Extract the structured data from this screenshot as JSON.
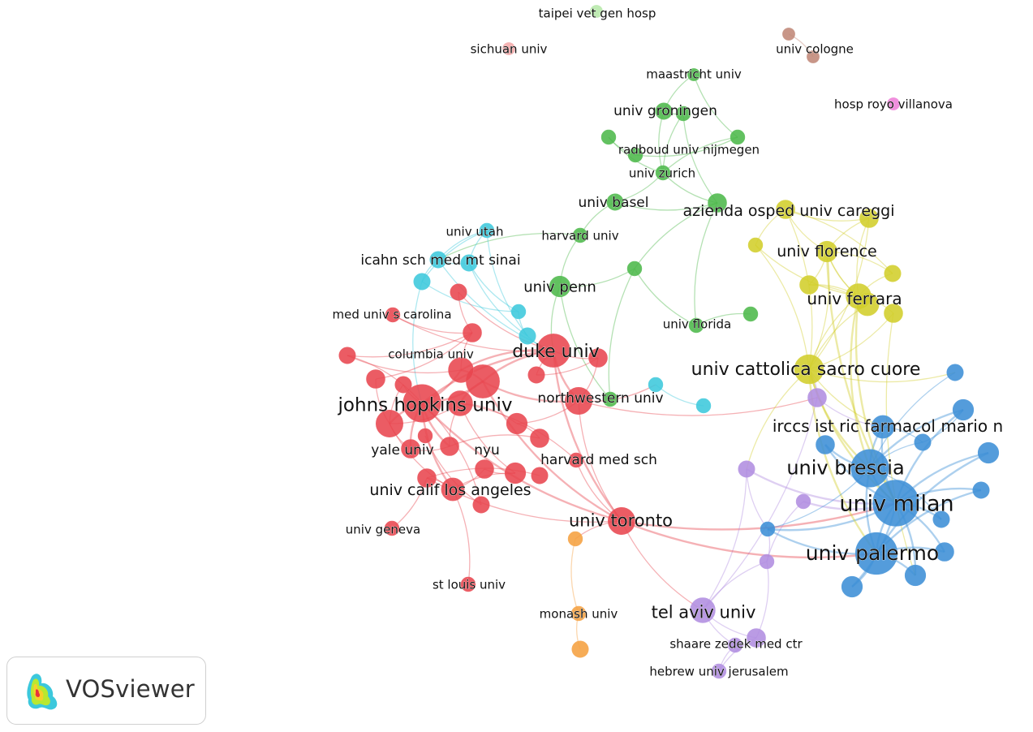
{
  "brand": {
    "name": "VOSviewer",
    "logo_icon": "vosviewer-density-logo-icon"
  },
  "clusters": {
    "red": "#e8454f",
    "green": "#4cb84a",
    "cyan": "#3cc8dc",
    "yellow": "#d2ce2a",
    "blue": "#3c8ed6",
    "purple": "#b08de0",
    "orange": "#f5a040",
    "brown": "#c08878",
    "pink": "#ee7fd8",
    "lightred": "#f4a8a8",
    "lightgreen": "#b6e8a8"
  },
  "nodes": [
    {
      "id": "taipei",
      "label": "taipei vet gen hosp",
      "cluster": "lightgreen",
      "size": 1,
      "fs": 15
    },
    {
      "id": "sichuan",
      "label": "sichuan univ",
      "cluster": "lightred",
      "size": 1,
      "fs": 15
    },
    {
      "id": "cologne",
      "label": "univ cologne",
      "cluster": "brown",
      "size": 1,
      "fs": 15
    },
    {
      "id": "cologne2",
      "label": "",
      "cluster": "brown",
      "size": 1
    },
    {
      "id": "royo",
      "label": "hosp royo villanova",
      "cluster": "pink",
      "size": 1,
      "fs": 15
    },
    {
      "id": "maastricht",
      "label": "maastricht univ",
      "cluster": "green",
      "size": 1,
      "fs": 15
    },
    {
      "id": "groningen",
      "label": "univ groningen",
      "cluster": "green",
      "size": 2,
      "fs": 17
    },
    {
      "id": "g_b",
      "label": "",
      "cluster": "green",
      "size": 1.5
    },
    {
      "id": "g_c",
      "label": "",
      "cluster": "green",
      "size": 1.5
    },
    {
      "id": "g_d",
      "label": "",
      "cluster": "green",
      "size": 1.5
    },
    {
      "id": "radboud",
      "label": "radboud univ nijmegen",
      "cluster": "green",
      "size": 1.5,
      "fs": 15
    },
    {
      "id": "zurich",
      "label": "univ zurich",
      "cluster": "green",
      "size": 1.5,
      "fs": 15
    },
    {
      "id": "basel",
      "label": "univ basel",
      "cluster": "green",
      "size": 2,
      "fs": 17
    },
    {
      "id": "careggi_g",
      "label": "",
      "cluster": "green",
      "size": 2.5
    },
    {
      "id": "harvard",
      "label": "harvard univ",
      "cluster": "green",
      "size": 1.5,
      "fs": 15
    },
    {
      "id": "penn",
      "label": "univ penn",
      "cluster": "green",
      "size": 3,
      "fs": 18
    },
    {
      "id": "g_mid",
      "label": "",
      "cluster": "green",
      "size": 1.5
    },
    {
      "id": "florida",
      "label": "univ florida",
      "cluster": "green",
      "size": 1.5,
      "fs": 15
    },
    {
      "id": "g_fl2",
      "label": "",
      "cluster": "green",
      "size": 1.5
    },
    {
      "id": "northwestern_g",
      "label": "",
      "cluster": "green",
      "size": 1.5
    },
    {
      "id": "careggi",
      "label": "azienda osped univ careggi",
      "cluster": "yellow",
      "size": 2.5,
      "fs": 19
    },
    {
      "id": "y_a",
      "label": "",
      "cluster": "yellow",
      "size": 2.5
    },
    {
      "id": "y_b",
      "label": "",
      "cluster": "yellow",
      "size": 1.5
    },
    {
      "id": "florence",
      "label": "univ florence",
      "cluster": "yellow",
      "size": 3,
      "fs": 19
    },
    {
      "id": "y_c",
      "label": "",
      "cluster": "yellow",
      "size": 3.5
    },
    {
      "id": "y_d",
      "label": "",
      "cluster": "yellow",
      "size": 2
    },
    {
      "id": "y_e",
      "label": "",
      "cluster": "yellow",
      "size": 2.5
    },
    {
      "id": "ferrara",
      "label": "univ ferrara",
      "cluster": "yellow",
      "size": 4,
      "fs": 20
    },
    {
      "id": "y_f",
      "label": "",
      "cluster": "yellow",
      "size": 2.5
    },
    {
      "id": "cattolica",
      "label": "univ cattolica sacro cuore",
      "cluster": "yellow",
      "size": 5,
      "fs": 22
    },
    {
      "id": "utah",
      "label": "univ utah",
      "cluster": "cyan",
      "size": 1.5,
      "fs": 15
    },
    {
      "id": "sinai",
      "label": "icahn sch med mt sinai",
      "cluster": "cyan",
      "size": 2,
      "fs": 17
    },
    {
      "id": "c_a",
      "label": "",
      "cluster": "cyan",
      "size": 2
    },
    {
      "id": "c_b",
      "label": "",
      "cluster": "cyan",
      "size": 2
    },
    {
      "id": "c_c",
      "label": "",
      "cluster": "cyan",
      "size": 1.5
    },
    {
      "id": "c_d",
      "label": "",
      "cluster": "cyan",
      "size": 2
    },
    {
      "id": "c_e",
      "label": "",
      "cluster": "cyan",
      "size": 1.5
    },
    {
      "id": "c_f",
      "label": "",
      "cluster": "cyan",
      "size": 1.5
    },
    {
      "id": "scarolina",
      "label": "med univ s carolina",
      "cluster": "red",
      "size": 1.5,
      "fs": 15
    },
    {
      "id": "r_a",
      "label": "",
      "cluster": "red",
      "size": 2
    },
    {
      "id": "r_b",
      "label": "",
      "cluster": "red",
      "size": 2.5
    },
    {
      "id": "columbia",
      "label": "columbia univ",
      "cluster": "red",
      "size": 2,
      "fs": 15
    },
    {
      "id": "duke",
      "label": "duke univ",
      "cluster": "red",
      "size": 6,
      "fs": 22
    },
    {
      "id": "r_c",
      "label": "",
      "cluster": "red",
      "size": 2.5
    },
    {
      "id": "r_d",
      "label": "",
      "cluster": "red",
      "size": 4
    },
    {
      "id": "r_e",
      "label": "",
      "cluster": "red",
      "size": 6
    },
    {
      "id": "r_f",
      "label": "",
      "cluster": "red",
      "size": 2.5
    },
    {
      "id": "r_g",
      "label": "",
      "cluster": "red",
      "size": 2
    },
    {
      "id": "jhu",
      "label": "johns hopkins univ",
      "cluster": "red",
      "size": 7,
      "fs": 23
    },
    {
      "id": "r_h",
      "label": "",
      "cluster": "red",
      "size": 4.5
    },
    {
      "id": "r_i",
      "label": "",
      "cluster": "red",
      "size": 4
    },
    {
      "id": "northwestern",
      "label": "northwestern univ",
      "cluster": "red",
      "size": 4.5,
      "fs": 17
    },
    {
      "id": "r_j",
      "label": "",
      "cluster": "red",
      "size": 3
    },
    {
      "id": "r_k",
      "label": "",
      "cluster": "red",
      "size": 2.5
    },
    {
      "id": "yale",
      "label": "yale univ",
      "cluster": "red",
      "size": 2.5,
      "fs": 17
    },
    {
      "id": "nyu",
      "label": "nyu",
      "cluster": "red",
      "size": 2.5,
      "fs": 17
    },
    {
      "id": "hms",
      "label": "harvard med sch",
      "cluster": "red",
      "size": 1.5,
      "fs": 17
    },
    {
      "id": "r_l",
      "label": "",
      "cluster": "red",
      "size": 2.5
    },
    {
      "id": "r_m",
      "label": "",
      "cluster": "red",
      "size": 3
    },
    {
      "id": "r_n",
      "label": "",
      "cluster": "red",
      "size": 2
    },
    {
      "id": "ucla",
      "label": "univ calif los angeles",
      "cluster": "red",
      "size": 3.5,
      "fs": 19
    },
    {
      "id": "r_o",
      "label": "",
      "cluster": "red",
      "size": 2.5
    },
    {
      "id": "r_p",
      "label": "",
      "cluster": "red",
      "size": 2
    },
    {
      "id": "toronto",
      "label": "univ toronto",
      "cluster": "red",
      "size": 4.5,
      "fs": 21
    },
    {
      "id": "geneva",
      "label": "univ geneva",
      "cluster": "red",
      "size": 1.5,
      "fs": 15
    },
    {
      "id": "stlouis",
      "label": "st louis univ",
      "cluster": "red",
      "size": 1.5,
      "fs": 15
    },
    {
      "id": "r_q",
      "label": "",
      "cluster": "red",
      "size": 1.5
    },
    {
      "id": "r_r",
      "label": "",
      "cluster": "red",
      "size": 2
    },
    {
      "id": "o_a",
      "label": "",
      "cluster": "orange",
      "size": 1.5
    },
    {
      "id": "monash",
      "label": "monash univ",
      "cluster": "orange",
      "size": 1.5,
      "fs": 15
    },
    {
      "id": "o_b",
      "label": "",
      "cluster": "orange",
      "size": 2
    },
    {
      "id": "telaviv",
      "label": "tel aviv univ",
      "cluster": "purple",
      "size": 4,
      "fs": 21
    },
    {
      "id": "shaare",
      "label": "shaare zedek med ctr",
      "cluster": "purple",
      "size": 2.5,
      "fs": 15
    },
    {
      "id": "p_a",
      "label": "",
      "cluster": "purple",
      "size": 1.5
    },
    {
      "id": "hebrew",
      "label": "hebrew univ jerusalem",
      "cluster": "purple",
      "size": 1.5,
      "fs": 15
    },
    {
      "id": "p_b",
      "label": "",
      "cluster": "purple",
      "size": 2.5
    },
    {
      "id": "p_c",
      "label": "",
      "cluster": "purple",
      "size": 2
    },
    {
      "id": "p_d",
      "label": "",
      "cluster": "purple",
      "size": 1.5
    },
    {
      "id": "p_e",
      "label": "",
      "cluster": "purple",
      "size": 1.5
    },
    {
      "id": "irccs",
      "label": "irccs ist ric farmacol mario n",
      "cluster": "blue",
      "size": 3.5,
      "fs": 20
    },
    {
      "id": "brescia",
      "label": "univ brescia",
      "cluster": "blue",
      "size": 7,
      "fs": 24
    },
    {
      "id": "milan",
      "label": "univ milan",
      "cluster": "blue",
      "size": 9,
      "fs": 27
    },
    {
      "id": "palermo",
      "label": "univ palermo",
      "cluster": "blue",
      "size": 8,
      "fs": 25
    },
    {
      "id": "b_a",
      "label": "",
      "cluster": "blue",
      "size": 1.5
    },
    {
      "id": "b_b",
      "label": "",
      "cluster": "blue",
      "size": 2.5
    },
    {
      "id": "b_c",
      "label": "",
      "cluster": "blue",
      "size": 2
    },
    {
      "id": "b_d",
      "label": "",
      "cluster": "blue",
      "size": 3
    },
    {
      "id": "b_e",
      "label": "",
      "cluster": "blue",
      "size": 3
    },
    {
      "id": "b_f",
      "label": "",
      "cluster": "blue",
      "size": 2
    },
    {
      "id": "b_g",
      "label": "",
      "cluster": "blue",
      "size": 2
    },
    {
      "id": "b_h",
      "label": "",
      "cluster": "blue",
      "size": 3
    },
    {
      "id": "b_i",
      "label": "",
      "cluster": "blue",
      "size": 3
    },
    {
      "id": "b_j",
      "label": "",
      "cluster": "blue",
      "size": 2
    },
    {
      "id": "b_k",
      "label": "",
      "cluster": "blue",
      "size": 2.5
    }
  ],
  "links": [
    [
      "cologne",
      "cologne2"
    ],
    [
      "maastricht",
      "groningen"
    ],
    [
      "groningen",
      "radboud"
    ],
    [
      "groningen",
      "zurich"
    ],
    [
      "radboud",
      "zurich"
    ],
    [
      "g_b",
      "g_c"
    ],
    [
      "g_c",
      "g_d"
    ],
    [
      "g_b",
      "zurich"
    ],
    [
      "g_d",
      "zurich"
    ],
    [
      "zurich",
      "careggi_g"
    ],
    [
      "basel",
      "careggi_g"
    ],
    [
      "basel",
      "harvard"
    ],
    [
      "harvard",
      "penn"
    ],
    [
      "penn",
      "g_mid"
    ],
    [
      "g_mid",
      "florida"
    ],
    [
      "g_mid",
      "northwestern_g"
    ],
    [
      "careggi_g",
      "florida"
    ],
    [
      "g_fl2",
      "florida"
    ],
    [
      "penn",
      "northwestern_g"
    ],
    [
      "basel",
      "zurich"
    ],
    [
      "maastricht",
      "g_d"
    ],
    [
      "radboud",
      "careggi_g"
    ],
    [
      "harvard",
      "sinai"
    ],
    [
      "penn",
      "duke"
    ],
    [
      "careggi_g",
      "g_mid"
    ],
    [
      "careggi",
      "y_a"
    ],
    [
      "careggi",
      "florence"
    ],
    [
      "careggi",
      "y_b"
    ],
    [
      "florence",
      "y_c"
    ],
    [
      "florence",
      "ferrara"
    ],
    [
      "ferrara",
      "y_c"
    ],
    [
      "ferrara",
      "y_e"
    ],
    [
      "ferrara",
      "cattolica"
    ],
    [
      "y_c",
      "cattolica"
    ],
    [
      "y_e",
      "florence"
    ],
    [
      "y_a",
      "ferrara"
    ],
    [
      "y_d",
      "ferrara"
    ],
    [
      "y_f",
      "ferrara"
    ],
    [
      "y_b",
      "ferrara"
    ],
    [
      "y_a",
      "florence"
    ],
    [
      "y_c",
      "y_e"
    ],
    [
      "y_d",
      "florence"
    ],
    [
      "y_d",
      "careggi"
    ],
    [
      "cattolica",
      "florence"
    ],
    [
      "cattolica",
      "careggi"
    ],
    [
      "cattolica",
      "y_a"
    ],
    [
      "cattolica",
      "y_f"
    ],
    [
      "cattolica",
      "y_b"
    ],
    [
      "utah",
      "sinai"
    ],
    [
      "utah",
      "c_a"
    ],
    [
      "utah",
      "c_b"
    ],
    [
      "sinai",
      "c_a"
    ],
    [
      "sinai",
      "c_b"
    ],
    [
      "c_a",
      "c_c"
    ],
    [
      "c_b",
      "c_c"
    ],
    [
      "c_b",
      "c_d"
    ],
    [
      "c_c",
      "c_d"
    ],
    [
      "c_d",
      "duke"
    ],
    [
      "c_a",
      "jhu"
    ],
    [
      "c_e",
      "c_f"
    ],
    [
      "northwestern",
      "c_e"
    ],
    [
      "sinai",
      "duke"
    ],
    [
      "utah",
      "c_d"
    ],
    [
      "duke",
      "jhu"
    ],
    [
      "duke",
      "r_e"
    ],
    [
      "duke",
      "northwestern"
    ],
    [
      "duke",
      "r_d"
    ],
    [
      "duke",
      "r_c"
    ],
    [
      "jhu",
      "r_e"
    ],
    [
      "jhu",
      "r_h"
    ],
    [
      "jhu",
      "r_d"
    ],
    [
      "jhu",
      "columbia"
    ],
    [
      "jhu",
      "ucla"
    ],
    [
      "jhu",
      "yale"
    ],
    [
      "jhu",
      "nyu"
    ],
    [
      "r_e",
      "northwestern"
    ],
    [
      "r_e",
      "r_i"
    ],
    [
      "r_e",
      "r_d"
    ],
    [
      "r_h",
      "yale"
    ],
    [
      "r_h",
      "r_i"
    ],
    [
      "r_i",
      "nyu"
    ],
    [
      "r_i",
      "r_m"
    ],
    [
      "r_m",
      "ucla"
    ],
    [
      "ucla",
      "r_l"
    ],
    [
      "ucla",
      "r_o"
    ],
    [
      "r_o",
      "toronto"
    ],
    [
      "northwestern",
      "toronto"
    ],
    [
      "duke",
      "toronto"
    ],
    [
      "jhu",
      "toronto"
    ],
    [
      "r_e",
      "toronto"
    ],
    [
      "columbia",
      "r_d"
    ],
    [
      "columbia",
      "r_b"
    ],
    [
      "r_b",
      "r_d"
    ],
    [
      "r_a",
      "r_b"
    ],
    [
      "scarolina",
      "r_b"
    ],
    [
      "r_g",
      "r_h"
    ],
    [
      "r_f",
      "r_h"
    ],
    [
      "r_j",
      "r_i"
    ],
    [
      "r_j",
      "northwestern"
    ],
    [
      "r_k",
      "r_j"
    ],
    [
      "hms",
      "r_i"
    ],
    [
      "hms",
      "toronto"
    ],
    [
      "r_l",
      "r_m"
    ],
    [
      "r_n",
      "r_o"
    ],
    [
      "geneva",
      "r_o"
    ],
    [
      "stlouis",
      "ucla"
    ],
    [
      "r_p",
      "jhu"
    ],
    [
      "r_q",
      "r_p"
    ],
    [
      "r_r",
      "r_c"
    ],
    [
      "yale",
      "nyu"
    ],
    [
      "r_a",
      "duke"
    ],
    [
      "r_f",
      "r_b"
    ],
    [
      "r_g",
      "jhu"
    ],
    [
      "r_k",
      "nyu"
    ],
    [
      "northwestern",
      "r_c"
    ],
    [
      "duke",
      "r_r"
    ],
    [
      "r_h",
      "ucla"
    ],
    [
      "scarolina",
      "duke"
    ],
    [
      "toronto",
      "o_a"
    ],
    [
      "o_a",
      "monash"
    ],
    [
      "monash",
      "o_b"
    ],
    [
      "toronto",
      "telaviv"
    ],
    [
      "toronto",
      "milan"
    ],
    [
      "telaviv",
      "shaare"
    ],
    [
      "telaviv",
      "p_a"
    ],
    [
      "shaare",
      "hebrew"
    ],
    [
      "p_a",
      "hebrew"
    ],
    [
      "telaviv",
      "p_b"
    ],
    [
      "telaviv",
      "p_c"
    ],
    [
      "p_b",
      "irccs"
    ],
    [
      "p_b",
      "cattolica"
    ],
    [
      "p_c",
      "milan"
    ],
    [
      "p_c",
      "b_a"
    ],
    [
      "p_d",
      "milan"
    ],
    [
      "p_e",
      "telaviv"
    ],
    [
      "p_d",
      "p_e"
    ],
    [
      "p_e",
      "b_a"
    ],
    [
      "shaare",
      "p_e"
    ],
    [
      "northwestern",
      "p_b"
    ],
    [
      "cattolica",
      "p_c"
    ],
    [
      "irccs",
      "brescia"
    ],
    [
      "irccs",
      "milan"
    ],
    [
      "brescia",
      "milan"
    ],
    [
      "milan",
      "palermo"
    ],
    [
      "brescia",
      "palermo"
    ],
    [
      "b_a",
      "milan"
    ],
    [
      "b_b",
      "milan"
    ],
    [
      "b_c",
      "brescia"
    ],
    [
      "b_d",
      "brescia"
    ],
    [
      "b_d",
      "milan"
    ],
    [
      "b_e",
      "milan"
    ],
    [
      "b_e",
      "palermo"
    ],
    [
      "b_f",
      "brescia"
    ],
    [
      "b_g",
      "palermo"
    ],
    [
      "b_h",
      "milan"
    ],
    [
      "b_h",
      "palermo"
    ],
    [
      "b_i",
      "palermo"
    ],
    [
      "b_i",
      "milan"
    ],
    [
      "b_j",
      "milan"
    ],
    [
      "b_k",
      "palermo"
    ],
    [
      "b_k",
      "milan"
    ],
    [
      "cattolica",
      "milan"
    ],
    [
      "cattolica",
      "brescia"
    ],
    [
      "cattolica",
      "palermo"
    ],
    [
      "ferrara",
      "milan"
    ],
    [
      "cattolica",
      "irccs"
    ],
    [
      "b_c",
      "irccs"
    ],
    [
      "b_b",
      "brescia"
    ],
    [
      "b_g",
      "milan"
    ],
    [
      "b_j",
      "brescia"
    ],
    [
      "florence",
      "milan"
    ],
    [
      "ferrara",
      "brescia"
    ],
    [
      "b_a",
      "palermo"
    ],
    [
      "b_a",
      "brescia"
    ],
    [
      "toronto",
      "palermo"
    ],
    [
      "b_c",
      "b_d"
    ],
    [
      "cattolica",
      "b_f"
    ],
    [
      "y_f",
      "b_h"
    ]
  ]
}
